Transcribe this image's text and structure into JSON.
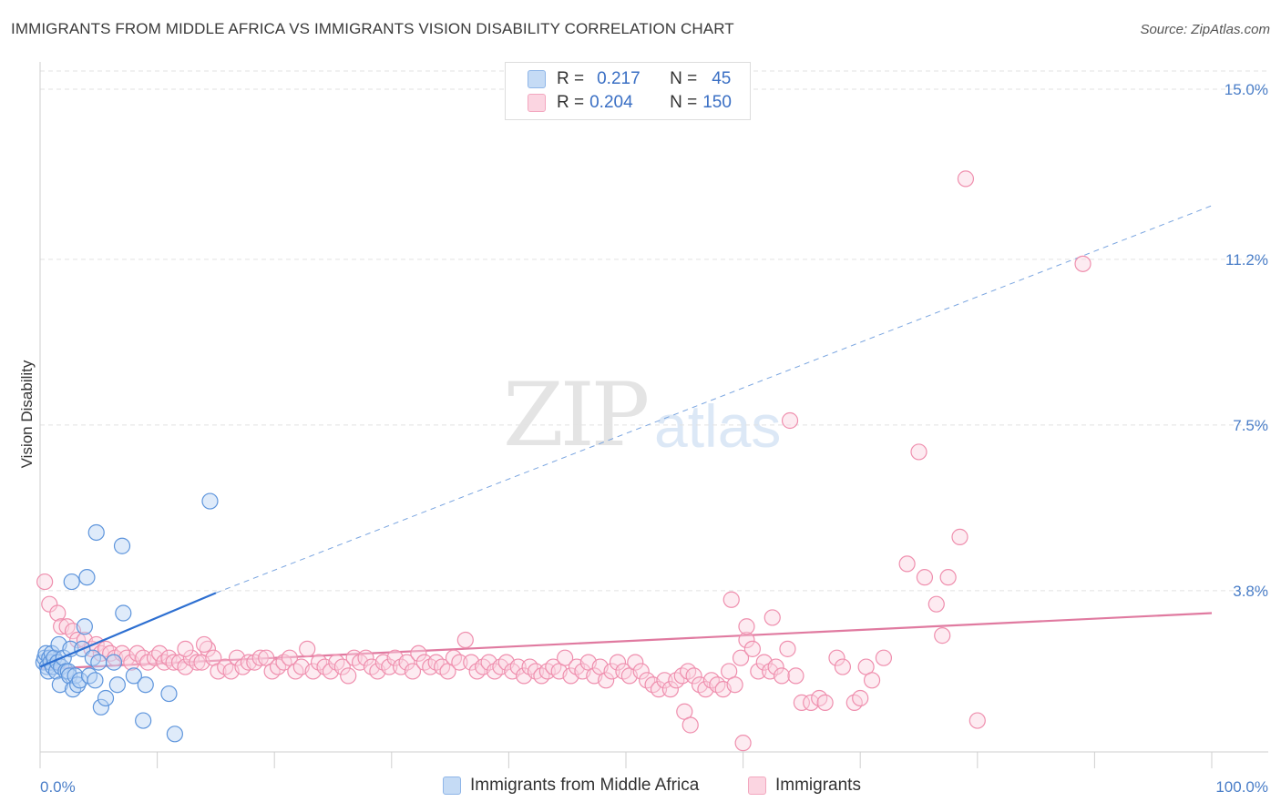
{
  "title": "IMMIGRANTS FROM MIDDLE AFRICA VS IMMIGRANTS VISION DISABILITY CORRELATION CHART",
  "source": "Source: ZipAtlas.com",
  "watermark": {
    "zip": "ZIP",
    "atlas": "atlas"
  },
  "legend": {
    "rows": [
      {
        "r_label": "R =",
        "r_value": "0.217",
        "n_label": "N =",
        "n_value": "45",
        "color": "#8fb6e8"
      },
      {
        "r_label": "R =",
        "r_value": "0.204",
        "n_label": "N =",
        "n_value": "150",
        "color": "#f3a7bf"
      }
    ]
  },
  "bottom_legend": [
    {
      "label": "Immigrants from Middle Africa",
      "color": "#8fb6e8"
    },
    {
      "label": "Immigrants",
      "color": "#f3a7bf"
    }
  ],
  "chart_data": {
    "type": "scatter",
    "title": "IMMIGRANTS FROM MIDDLE AFRICA VS IMMIGRANTS VISION DISABILITY CORRELATION CHART",
    "xlabel": "",
    "ylabel": "Vision Disability",
    "x_ticks": [
      "0.0%",
      "100.0%"
    ],
    "y_ticks": [
      {
        "value": 3.8,
        "label": "3.8%"
      },
      {
        "value": 7.5,
        "label": "7.5%"
      },
      {
        "value": 11.2,
        "label": "11.2%"
      },
      {
        "value": 15.0,
        "label": "15.0%"
      }
    ],
    "xlim": [
      0,
      100
    ],
    "ylim": [
      0.2,
      15.5
    ],
    "grid": "horizontal dashed",
    "legend_placement": "top-center",
    "series": [
      {
        "name": "Immigrants from Middle Africa",
        "color": "#6fa2e0",
        "line_color": "#2d6fd1",
        "trend": {
          "x0": 0,
          "y0": 2.1,
          "x1": 15,
          "y1": 3.75,
          "dashed_to_x": 100,
          "dashed_to_y": 12.4
        },
        "points": [
          [
            0.3,
            2.2
          ],
          [
            0.4,
            2.3
          ],
          [
            0.5,
            2.4
          ],
          [
            0.6,
            2.1
          ],
          [
            0.7,
            2.0
          ],
          [
            0.8,
            2.3
          ],
          [
            0.9,
            2.2
          ],
          [
            1.0,
            2.4
          ],
          [
            1.1,
            2.1
          ],
          [
            1.2,
            2.3
          ],
          [
            1.4,
            2.0
          ],
          [
            1.5,
            2.2
          ],
          [
            1.6,
            2.6
          ],
          [
            1.8,
            2.1
          ],
          [
            2.0,
            2.3
          ],
          [
            2.2,
            2.0
          ],
          [
            1.7,
            1.7
          ],
          [
            2.4,
            2.0
          ],
          [
            2.5,
            1.9
          ],
          [
            2.6,
            2.5
          ],
          [
            2.8,
            1.6
          ],
          [
            3.0,
            1.9
          ],
          [
            3.2,
            1.7
          ],
          [
            3.4,
            1.8
          ],
          [
            3.6,
            2.5
          ],
          [
            3.8,
            3.0
          ],
          [
            4.0,
            4.1
          ],
          [
            4.2,
            1.9
          ],
          [
            4.5,
            2.3
          ],
          [
            4.7,
            1.8
          ],
          [
            5.0,
            2.2
          ],
          [
            5.2,
            1.2
          ],
          [
            5.6,
            1.4
          ],
          [
            6.3,
            2.2
          ],
          [
            6.6,
            1.7
          ],
          [
            7.1,
            3.3
          ],
          [
            7.0,
            4.8
          ],
          [
            4.8,
            5.1
          ],
          [
            2.7,
            4.0
          ],
          [
            8.0,
            1.9
          ],
          [
            9.0,
            1.7
          ],
          [
            8.8,
            0.9
          ],
          [
            11.0,
            1.5
          ],
          [
            11.5,
            0.6
          ],
          [
            14.5,
            5.8
          ]
        ]
      },
      {
        "name": "Immigrants",
        "color": "#f3a7bf",
        "line_color": "#e07aa0",
        "trend": {
          "x0": 0,
          "y0": 2.05,
          "x1": 100,
          "y1": 3.3
        },
        "points": [
          [
            0.4,
            4.0
          ],
          [
            0.8,
            3.5
          ],
          [
            1.5,
            3.3
          ],
          [
            1.8,
            3.0
          ],
          [
            2.3,
            3.0
          ],
          [
            2.8,
            2.9
          ],
          [
            3.2,
            2.7
          ],
          [
            3.8,
            2.7
          ],
          [
            4.4,
            2.5
          ],
          [
            4.8,
            2.6
          ],
          [
            5.2,
            2.4
          ],
          [
            5.6,
            2.5
          ],
          [
            6.0,
            2.4
          ],
          [
            6.4,
            2.3
          ],
          [
            7.0,
            2.4
          ],
          [
            7.4,
            2.3
          ],
          [
            7.8,
            2.2
          ],
          [
            8.3,
            2.4
          ],
          [
            8.8,
            2.3
          ],
          [
            9.2,
            2.2
          ],
          [
            9.8,
            2.3
          ],
          [
            10.2,
            2.4
          ],
          [
            10.6,
            2.2
          ],
          [
            11.0,
            2.3
          ],
          [
            11.4,
            2.2
          ],
          [
            11.9,
            2.2
          ],
          [
            12.4,
            2.1
          ],
          [
            12.9,
            2.3
          ],
          [
            13.4,
            2.2
          ],
          [
            13.8,
            2.2
          ],
          [
            14.3,
            2.5
          ],
          [
            14.8,
            2.3
          ],
          [
            15.2,
            2.0
          ],
          [
            15.8,
            2.1
          ],
          [
            16.3,
            2.0
          ],
          [
            16.8,
            2.3
          ],
          [
            17.3,
            2.1
          ],
          [
            17.8,
            2.2
          ],
          [
            18.3,
            2.2
          ],
          [
            18.8,
            2.3
          ],
          [
            19.3,
            2.3
          ],
          [
            19.8,
            2.0
          ],
          [
            20.3,
            2.1
          ],
          [
            20.8,
            2.2
          ],
          [
            21.3,
            2.3
          ],
          [
            21.8,
            2.0
          ],
          [
            22.3,
            2.1
          ],
          [
            22.8,
            2.5
          ],
          [
            23.3,
            2.0
          ],
          [
            23.8,
            2.2
          ],
          [
            24.3,
            2.1
          ],
          [
            24.8,
            2.0
          ],
          [
            25.3,
            2.2
          ],
          [
            25.8,
            2.1
          ],
          [
            26.3,
            1.9
          ],
          [
            26.8,
            2.3
          ],
          [
            27.3,
            2.2
          ],
          [
            27.8,
            2.3
          ],
          [
            28.3,
            2.1
          ],
          [
            28.8,
            2.0
          ],
          [
            29.3,
            2.2
          ],
          [
            29.8,
            2.1
          ],
          [
            30.3,
            2.3
          ],
          [
            30.8,
            2.1
          ],
          [
            31.3,
            2.2
          ],
          [
            31.8,
            2.0
          ],
          [
            32.3,
            2.4
          ],
          [
            32.8,
            2.2
          ],
          [
            33.3,
            2.1
          ],
          [
            33.8,
            2.2
          ],
          [
            34.3,
            2.1
          ],
          [
            34.8,
            2.0
          ],
          [
            35.3,
            2.3
          ],
          [
            35.8,
            2.2
          ],
          [
            36.3,
            2.7
          ],
          [
            36.8,
            2.2
          ],
          [
            37.3,
            2.0
          ],
          [
            37.8,
            2.1
          ],
          [
            38.3,
            2.2
          ],
          [
            38.8,
            2.0
          ],
          [
            39.3,
            2.1
          ],
          [
            39.8,
            2.2
          ],
          [
            40.3,
            2.0
          ],
          [
            40.8,
            2.1
          ],
          [
            41.3,
            1.9
          ],
          [
            41.8,
            2.1
          ],
          [
            42.3,
            2.0
          ],
          [
            42.8,
            1.9
          ],
          [
            43.3,
            2.0
          ],
          [
            43.8,
            2.1
          ],
          [
            44.3,
            2.0
          ],
          [
            44.8,
            2.3
          ],
          [
            45.3,
            1.9
          ],
          [
            45.8,
            2.1
          ],
          [
            46.3,
            2.0
          ],
          [
            46.8,
            2.2
          ],
          [
            47.3,
            1.9
          ],
          [
            47.8,
            2.1
          ],
          [
            48.3,
            1.8
          ],
          [
            48.8,
            2.0
          ],
          [
            49.3,
            2.2
          ],
          [
            49.8,
            2.0
          ],
          [
            50.3,
            1.9
          ],
          [
            50.8,
            2.2
          ],
          [
            51.3,
            2.0
          ],
          [
            51.8,
            1.8
          ],
          [
            52.3,
            1.7
          ],
          [
            52.8,
            1.6
          ],
          [
            53.3,
            1.8
          ],
          [
            53.8,
            1.6
          ],
          [
            54.3,
            1.8
          ],
          [
            54.8,
            1.9
          ],
          [
            55.3,
            2.0
          ],
          [
            55.8,
            1.9
          ],
          [
            56.3,
            1.7
          ],
          [
            56.8,
            1.6
          ],
          [
            57.3,
            1.8
          ],
          [
            57.8,
            1.7
          ],
          [
            58.3,
            1.6
          ],
          [
            58.8,
            2.0
          ],
          [
            59.3,
            1.7
          ],
          [
            59.8,
            2.3
          ],
          [
            60.3,
            2.7
          ],
          [
            60.8,
            2.5
          ],
          [
            61.3,
            2.0
          ],
          [
            61.8,
            2.2
          ],
          [
            62.3,
            2.0
          ],
          [
            62.8,
            2.1
          ],
          [
            63.3,
            1.9
          ],
          [
            63.8,
            2.5
          ],
          [
            64.5,
            1.9
          ],
          [
            65.0,
            1.3
          ],
          [
            65.8,
            1.3
          ],
          [
            66.5,
            1.4
          ],
          [
            67.0,
            1.3
          ],
          [
            68.0,
            2.3
          ],
          [
            68.5,
            2.1
          ],
          [
            69.5,
            1.3
          ],
          [
            70.0,
            1.4
          ],
          [
            70.5,
            2.1
          ],
          [
            71.0,
            1.8
          ],
          [
            72.0,
            2.3
          ],
          [
            12.4,
            2.5
          ],
          [
            14.0,
            2.6
          ],
          [
            55.0,
            1.1
          ],
          [
            55.5,
            0.8
          ],
          [
            60.0,
            0.4
          ],
          [
            60.3,
            3.0
          ],
          [
            59.0,
            3.6
          ],
          [
            62.5,
            3.2
          ],
          [
            74.0,
            4.4
          ],
          [
            75.5,
            4.1
          ],
          [
            77.5,
            4.1
          ],
          [
            76.5,
            3.5
          ],
          [
            77.0,
            2.8
          ],
          [
            78.5,
            5.0
          ],
          [
            75.0,
            6.9
          ],
          [
            80.0,
            0.9
          ],
          [
            64.0,
            7.6
          ],
          [
            79.0,
            13.0
          ],
          [
            89.0,
            11.1
          ]
        ]
      }
    ]
  }
}
